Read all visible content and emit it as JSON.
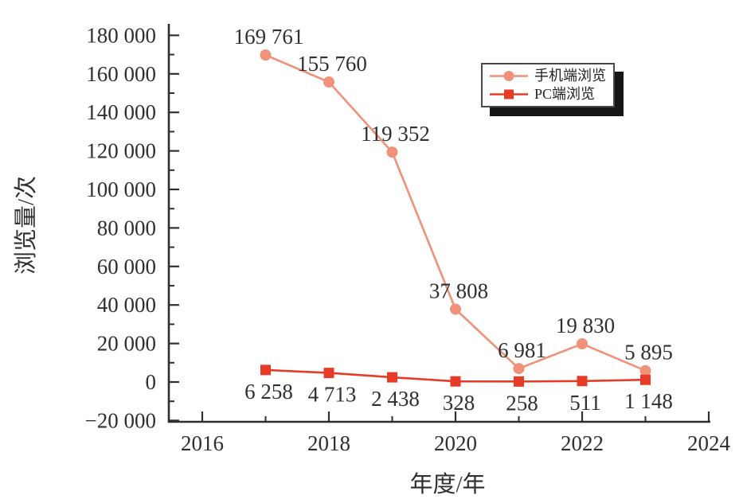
{
  "chart_data": {
    "type": "line",
    "title": "",
    "xlabel": "年度/年",
    "ylabel": "浏览量/次",
    "x": [
      2017,
      2018,
      2019,
      2020,
      2021,
      2022,
      2023
    ],
    "series": [
      {
        "name": "手机端浏览",
        "color": "#F0917A",
        "marker": "circle",
        "values": [
          169761,
          155760,
          119352,
          37808,
          6981,
          19830,
          5895
        ],
        "labels": [
          "169 761",
          "155 760",
          "119 352",
          "37 808",
          "6 981",
          "19 830",
          "5 895"
        ]
      },
      {
        "name": "PC端浏览",
        "color": "#E73B28",
        "marker": "square",
        "values": [
          6258,
          4713,
          2438,
          328,
          258,
          511,
          1148
        ],
        "labels": [
          "6 258",
          "4 713",
          "2 438",
          "328",
          "258",
          "511",
          "1 148"
        ]
      }
    ],
    "x_axis": {
      "range": [
        2016,
        2024
      ],
      "major_ticks": [
        {
          "value": 2016,
          "label": "2016"
        },
        {
          "value": 2018,
          "label": "2018"
        },
        {
          "value": 2020,
          "label": "2020"
        },
        {
          "value": 2022,
          "label": "2022"
        },
        {
          "value": 2024,
          "label": "2024"
        }
      ],
      "minor_ticks": [
        2017,
        2019,
        2021,
        2023
      ]
    },
    "y_axis": {
      "range": [
        -20000,
        180000
      ],
      "major_ticks": [
        {
          "value": 180000,
          "label": "180 000"
        },
        {
          "value": 160000,
          "label": "160 000"
        },
        {
          "value": 140000,
          "label": "140 000"
        },
        {
          "value": 120000,
          "label": "120 000"
        },
        {
          "value": 100000,
          "label": "100 000"
        },
        {
          "value": 80000,
          "label": "80 000"
        },
        {
          "value": 60000,
          "label": "60 000"
        },
        {
          "value": 40000,
          "label": "40 000"
        },
        {
          "value": 20000,
          "label": "20 000"
        },
        {
          "value": 0,
          "label": "0"
        },
        {
          "value": -20000,
          "label": "−20 000"
        }
      ],
      "minor_ticks": [
        -10000,
        10000,
        30000,
        50000,
        70000,
        90000,
        110000,
        130000,
        150000,
        170000
      ]
    },
    "xlim": [
      2016,
      2024
    ],
    "ylim": [
      -20000,
      180000
    ],
    "grid": false,
    "legend_position": "top-right",
    "axis_color": "#2F2F2F",
    "text_color": "#2F2F2F"
  }
}
